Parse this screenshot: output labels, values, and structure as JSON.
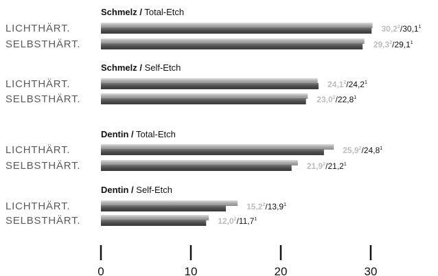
{
  "chart_data": {
    "type": "bar",
    "orientation": "horizontal",
    "xlim": [
      0,
      30
    ],
    "xticks": [
      "0",
      "10",
      "20",
      "30"
    ],
    "series": [
      {
        "superscript": "2"
      },
      {
        "superscript": "1"
      }
    ],
    "colors": {
      "series_1": "#a9a9a9",
      "series_2": "#4d4d4d",
      "value_1": "#bdbdbd",
      "value_2": "#111111"
    },
    "groups": [
      {
        "title_bold": "Schmelz /",
        "title_rest": " Total-Etch",
        "rows": [
          {
            "label": "LICHTHÄRT.",
            "values": [
              30.2,
              30.1
            ],
            "labels": [
              "30,2",
              "30,1"
            ]
          },
          {
            "label": "SELBSTHÄRT.",
            "values": [
              29.3,
              29.1
            ],
            "labels": [
              "29,3",
              "29,1"
            ]
          }
        ]
      },
      {
        "title_bold": "Schmelz /",
        "title_rest": " Self-Etch",
        "rows": [
          {
            "label": "LICHTHÄRT.",
            "values": [
              24.1,
              24.2
            ],
            "labels": [
              "24,1",
              "24,2"
            ]
          },
          {
            "label": "SELBSTHÄRT.",
            "values": [
              23.0,
              22.8
            ],
            "labels": [
              "23,0",
              "22,8"
            ]
          }
        ]
      },
      {
        "title_bold": "Dentin /",
        "title_rest": " Total-Etch",
        "rows": [
          {
            "label": "LICHTHÄRT.",
            "values": [
              25.9,
              24.8
            ],
            "labels": [
              "25,9",
              "24,8"
            ]
          },
          {
            "label": "SELBSTHÄRT.",
            "values": [
              21.9,
              21.2
            ],
            "labels": [
              "21,9",
              "21,2"
            ]
          }
        ]
      },
      {
        "title_bold": "Dentin /",
        "title_rest": " Self-Etch",
        "rows": [
          {
            "label": "LICHTHÄRT.",
            "values": [
              15.2,
              13.9
            ],
            "labels": [
              "15,2",
              "13,9"
            ]
          },
          {
            "label": "SELBSTHÄRT.",
            "values": [
              12.0,
              11.7
            ],
            "labels": [
              "12,0",
              "11,7"
            ]
          }
        ]
      }
    ]
  }
}
